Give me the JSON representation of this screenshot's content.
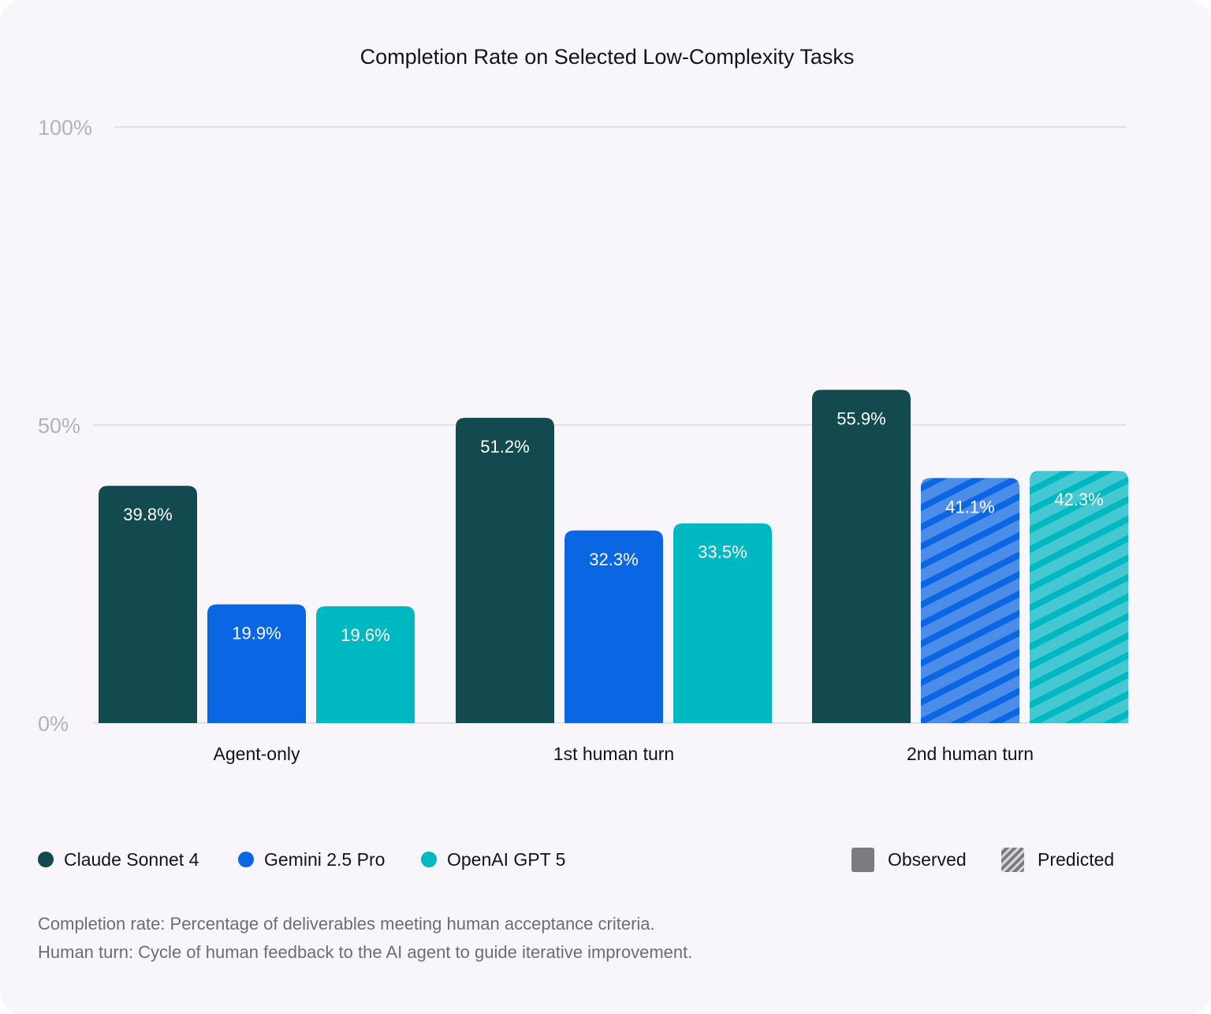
{
  "chart_data": {
    "type": "bar",
    "title": "Completion Rate on Selected Low-Complexity Tasks",
    "xlabel": "",
    "ylabel": "",
    "ylim": [
      0,
      100
    ],
    "yticks": [
      0,
      50,
      100
    ],
    "ytick_labels": [
      "0%",
      "50%",
      "100%"
    ],
    "categories": [
      "Agent-only",
      "1st human turn",
      "2nd human turn"
    ],
    "series": [
      {
        "name": "Claude Sonnet 4",
        "color": "#134a4f",
        "values": [
          39.8,
          51.2,
          55.9
        ],
        "labels": [
          "39.8%",
          "51.2%",
          "55.9%"
        ],
        "predicted": [
          false,
          false,
          false
        ]
      },
      {
        "name": "Gemini 2.5 Pro",
        "color": "#0b66e4",
        "values": [
          19.9,
          32.3,
          41.1
        ],
        "labels": [
          "19.9%",
          "32.3%",
          "41.1%"
        ],
        "predicted": [
          false,
          false,
          true
        ]
      },
      {
        "name": "OpenAI GPT 5",
        "color": "#00b8c2",
        "values": [
          19.6,
          33.5,
          42.3
        ],
        "labels": [
          "19.6%",
          "33.5%",
          "42.3%"
        ],
        "predicted": [
          false,
          false,
          true
        ]
      }
    ],
    "grid": true,
    "legend": "bottom"
  },
  "legend": {
    "series": [
      {
        "label": "Claude Sonnet 4",
        "color": "#134a4f"
      },
      {
        "label": "Gemini 2.5 Pro",
        "color": "#0b66e4"
      },
      {
        "label": "OpenAI GPT 5",
        "color": "#00b8c2"
      }
    ],
    "styles": {
      "observed": "Observed",
      "predicted": "Predicted"
    }
  },
  "notes": [
    "Completion rate: Percentage of deliverables meeting human acceptance criteria.",
    "Human turn: Cycle of human feedback to the AI agent to guide iterative improvement."
  ]
}
